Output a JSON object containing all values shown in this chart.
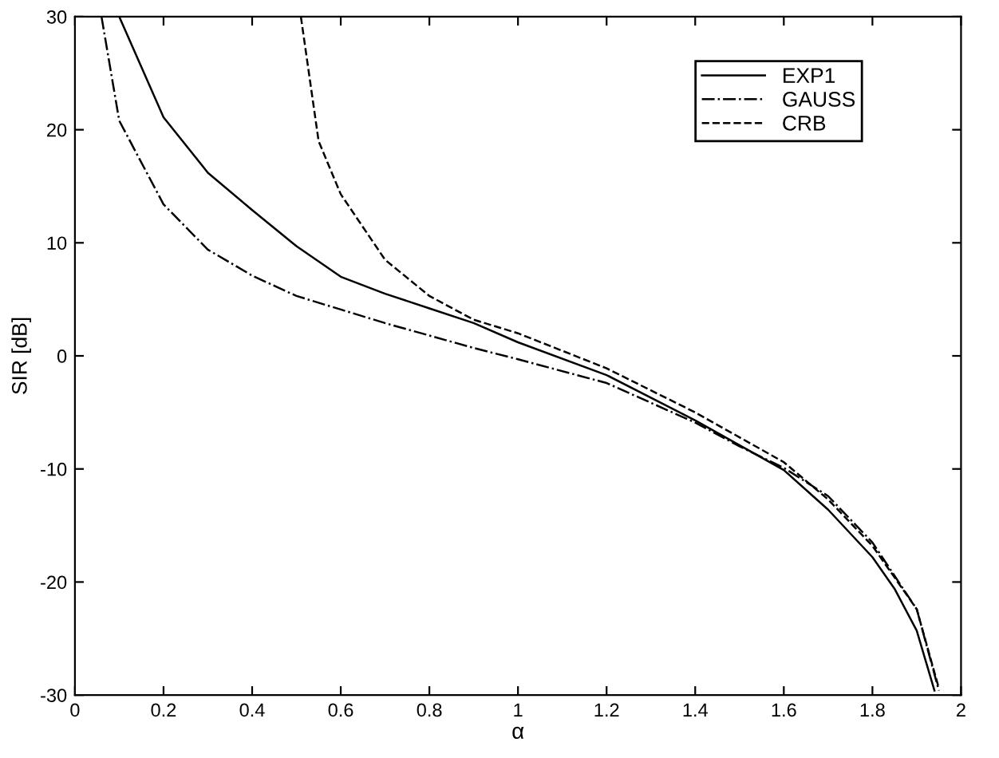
{
  "chart_data": {
    "type": "line",
    "xlabel": "α",
    "ylabel": "SIR [dB]",
    "xlim": [
      0,
      2
    ],
    "ylim": [
      -30,
      30
    ],
    "xticks": [
      0,
      0.2,
      0.4,
      0.6,
      0.8,
      1,
      1.2,
      1.4,
      1.6,
      1.8,
      2
    ],
    "yticks": [
      -30,
      -20,
      -10,
      0,
      10,
      20,
      30
    ],
    "grid": false,
    "legend": "top right",
    "marker": "none",
    "series": [
      {
        "name": "EXP1",
        "color": "#000000",
        "line_style": "solid",
        "x": [
          0.1,
          0.2,
          0.3,
          0.4,
          0.5,
          0.6,
          0.7,
          0.8,
          0.9,
          1.0,
          1.2,
          1.4,
          1.6,
          1.7,
          1.8,
          1.85,
          1.9,
          1.94
        ],
        "values": [
          30,
          21.1,
          16.2,
          12.9,
          9.7,
          7.0,
          5.5,
          4.2,
          2.9,
          1.2,
          -1.7,
          -5.7,
          -10.1,
          -13.6,
          -17.8,
          -20.6,
          -24.3,
          -29.6
        ]
      },
      {
        "name": "GAUSS",
        "color": "#000000",
        "line_style": "dashdot",
        "x": [
          0.06,
          0.1,
          0.2,
          0.3,
          0.4,
          0.5,
          0.6,
          0.7,
          0.8,
          0.9,
          1.0,
          1.2,
          1.4,
          1.5,
          1.6,
          1.7,
          1.8,
          1.9,
          1.95
        ],
        "values": [
          30,
          20.8,
          13.4,
          9.4,
          7.1,
          5.3,
          4.1,
          2.9,
          1.8,
          0.7,
          -0.3,
          -2.4,
          -5.9,
          -8.0,
          -9.9,
          -12.4,
          -16.5,
          -22.4,
          -29.6
        ]
      },
      {
        "name": "CRB",
        "color": "#000000",
        "line_style": "dashed",
        "x": [
          0.51,
          0.55,
          0.6,
          0.7,
          0.8,
          0.9,
          1.0,
          1.2,
          1.4,
          1.6,
          1.7,
          1.8,
          1.9,
          1.95
        ],
        "values": [
          30,
          19,
          14.3,
          8.5,
          5.3,
          3.2,
          2.0,
          -1.1,
          -5.0,
          -9.4,
          -12.7,
          -16.8,
          -22.4,
          -29.4
        ]
      }
    ]
  }
}
